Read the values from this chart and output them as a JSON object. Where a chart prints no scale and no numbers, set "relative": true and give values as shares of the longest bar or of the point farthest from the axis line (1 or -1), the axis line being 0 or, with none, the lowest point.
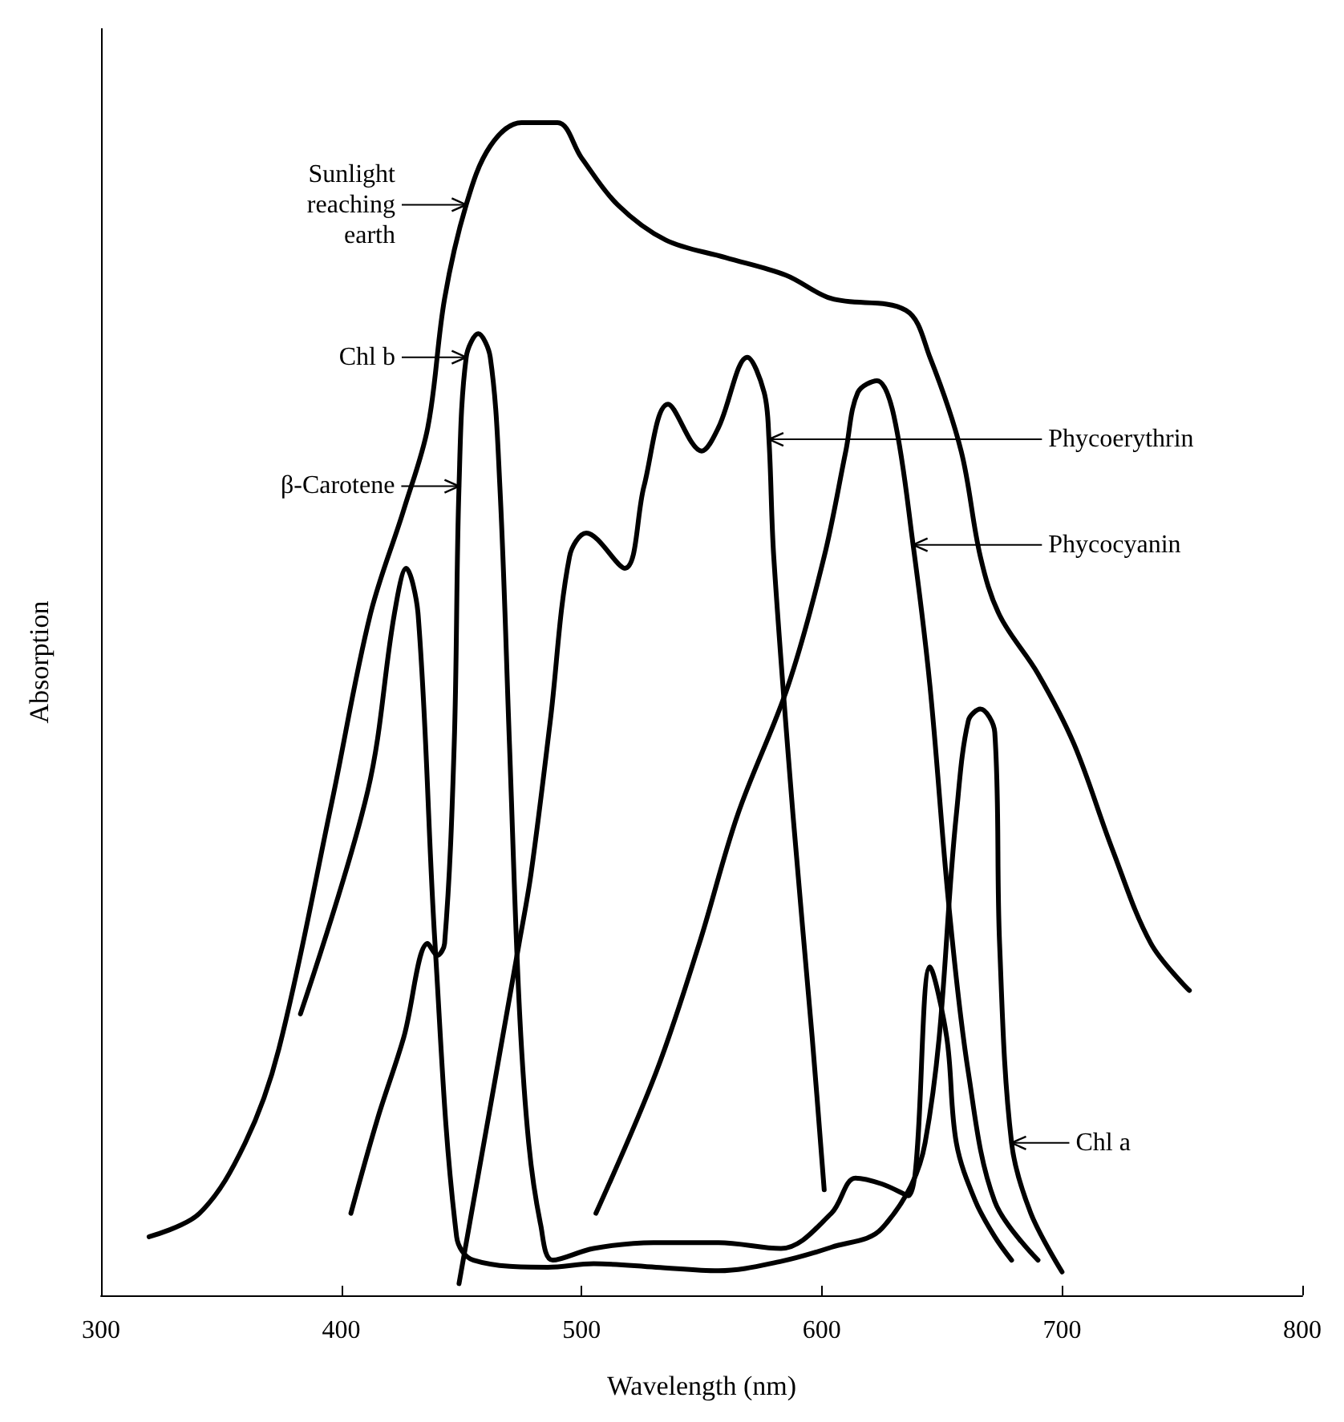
{
  "chart_data": {
    "type": "line",
    "relative": true,
    "xlabel": "Wavelength (nm)",
    "ylabel": "Absorption",
    "xlim": [
      300,
      800
    ],
    "xticks": [
      300,
      400,
      500,
      600,
      700,
      800
    ],
    "grid": false,
    "marker": "none",
    "series": [
      {
        "color": "#000000",
        "x": [
          320,
          341,
          360,
          374,
          396,
          412,
          426,
          436,
          443,
          452,
          462,
          475,
          490,
          500,
          515,
          535,
          560,
          585,
          604,
          635,
          645,
          658,
          666,
          674,
          690,
          705,
          721,
          737,
          753
        ],
        "values": [
          0.05,
          0.07,
          0.13,
          0.21,
          0.42,
          0.58,
          0.67,
          0.74,
          0.85,
          0.93,
          0.98,
          1.0,
          1.0,
          0.97,
          0.93,
          0.9,
          0.885,
          0.87,
          0.85,
          0.84,
          0.8,
          0.72,
          0.63,
          0.58,
          0.53,
          0.47,
          0.38,
          0.3,
          0.26
        ]
      },
      {
        "color": "#000000",
        "x": [
          404,
          415,
          426,
          436,
          440,
          443,
          447,
          449,
          452,
          457,
          462,
          466,
          470,
          474,
          478,
          483,
          488,
          505,
          530,
          557,
          583,
          604,
          614,
          625,
          636,
          645,
          652,
          656,
          664,
          672,
          679
        ],
        "values": [
          0.07,
          0.15,
          0.22,
          0.3,
          0.29,
          0.3,
          0.47,
          0.69,
          0.8,
          0.82,
          0.8,
          0.69,
          0.47,
          0.25,
          0.13,
          0.06,
          0.03,
          0.04,
          0.045,
          0.045,
          0.04,
          0.07,
          0.1,
          0.095,
          0.085,
          0.28,
          0.22,
          0.13,
          0.08,
          0.05,
          0.03
        ]
      },
      {
        "color": "#000000",
        "x": [
          383,
          411,
          422,
          427,
          432,
          439,
          448,
          455,
          486,
          505,
          531,
          557,
          583,
          604,
          625,
          643,
          656,
          661,
          666,
          672,
          674,
          679,
          687,
          700
        ],
        "values": [
          0.24,
          0.43,
          0.58,
          0.62,
          0.58,
          0.3,
          0.05,
          0.03,
          0.024,
          0.027,
          0.024,
          0.021,
          0.029,
          0.041,
          0.057,
          0.13,
          0.41,
          0.49,
          0.5,
          0.48,
          0.3,
          0.13,
          0.07,
          0.02
        ]
      },
      {
        "color": "#000000",
        "x": [
          449,
          474,
          479,
          487,
          495,
          502,
          518,
          526,
          536,
          550,
          557,
          569,
          576,
          578,
          580,
          588,
          596,
          601
        ],
        "values": [
          0.01,
          0.3,
          0.36,
          0.49,
          0.63,
          0.65,
          0.62,
          0.69,
          0.76,
          0.72,
          0.74,
          0.8,
          0.77,
          0.73,
          0.63,
          0.41,
          0.22,
          0.09
        ]
      },
      {
        "color": "#000000",
        "x": [
          506,
          531,
          549,
          565,
          586,
          601,
          610,
          615,
          623,
          630,
          638,
          645,
          653,
          661,
          672,
          690
        ],
        "values": [
          0.07,
          0.19,
          0.3,
          0.41,
          0.52,
          0.63,
          0.72,
          0.77,
          0.78,
          0.75,
          0.64,
          0.52,
          0.33,
          0.19,
          0.08,
          0.03
        ]
      }
    ],
    "annotations": [
      {
        "text": "Sunlight reaching earth",
        "x": 452,
        "y": 0.93
      },
      {
        "text": "Chl b",
        "x": 452,
        "y": 0.8
      },
      {
        "text": "β-Carotene",
        "x": 449,
        "y": 0.69
      },
      {
        "text": "Phycoerythrin",
        "x": 578,
        "y": 0.73
      },
      {
        "text": "Phycocyanin",
        "x": 638,
        "y": 0.64
      },
      {
        "text": "Chl a",
        "x": 679,
        "y": 0.13
      }
    ]
  }
}
